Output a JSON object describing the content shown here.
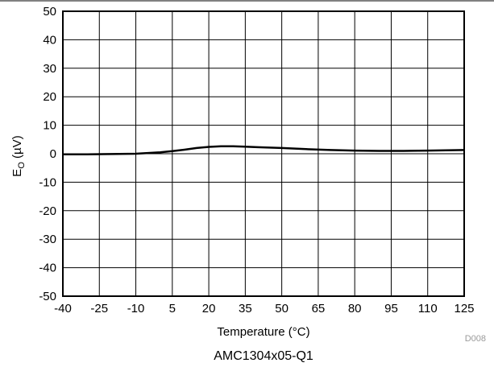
{
  "chart_data": {
    "type": "line",
    "xlabel": "Temperature (°C)",
    "ylabel_main": "E",
    "ylabel_sub": "O",
    "ylabel_unit": " (µV)",
    "xlim": [
      -40,
      125
    ],
    "ylim": [
      -50,
      50
    ],
    "x_ticks": [
      -40,
      -25,
      -10,
      5,
      20,
      35,
      50,
      65,
      80,
      95,
      110,
      125
    ],
    "y_ticks": [
      50,
      40,
      30,
      20,
      10,
      0,
      -10,
      -20,
      -30,
      -40,
      -50
    ],
    "grid": true,
    "figure_code": "D008",
    "caption": "AMC1304x05-Q1",
    "series": [
      {
        "x": [
          -40,
          -30,
          -20,
          -10,
          0,
          5,
          10,
          15,
          20,
          25,
          30,
          35,
          40,
          50,
          60,
          70,
          80,
          90,
          95,
          100,
          110,
          125
        ],
        "y": [
          -0.2,
          -0.2,
          -0.1,
          0.0,
          0.5,
          0.9,
          1.4,
          2.0,
          2.4,
          2.6,
          2.6,
          2.5,
          2.3,
          2.0,
          1.6,
          1.3,
          1.1,
          1.0,
          1.0,
          1.0,
          1.1,
          1.3
        ],
        "color": "#000000"
      }
    ]
  }
}
